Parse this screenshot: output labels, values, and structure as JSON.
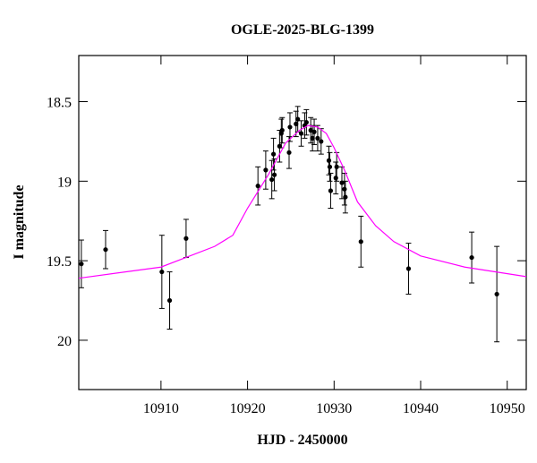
{
  "chart_data": {
    "type": "scatter",
    "title": "OGLE-2025-BLG-1399",
    "x_label": "HJD - 2450000",
    "y_label": "I magnitude",
    "xlim": [
      10900.5,
      10952.2
    ],
    "ylim": [
      18.21,
      20.31
    ],
    "y_inverted": true,
    "xticks": [
      10910,
      10920,
      10930,
      10940,
      10950
    ],
    "yticks": [
      18.5,
      19,
      19.5,
      20
    ],
    "series": [
      {
        "style": "points",
        "color": "#000000",
        "x": [
          10900.8,
          10903.6,
          10910.1,
          10911.0,
          10912.9,
          10921.2,
          10922.1,
          10922.8,
          10923.0,
          10923.1,
          10923.7,
          10923.9,
          10924.0,
          10924.8,
          10924.9,
          10925.6,
          10925.8,
          10926.2,
          10926.6,
          10926.8,
          10927.3,
          10927.5,
          10927.7,
          10928.1,
          10928.5,
          10929.4,
          10929.5,
          10929.6,
          10930.2,
          10930.3,
          10930.9,
          10931.2,
          10931.3,
          10933.1,
          10938.6,
          10945.9,
          10948.8
        ],
        "values": [
          19.52,
          19.43,
          19.57,
          19.75,
          19.36,
          19.03,
          18.93,
          18.99,
          18.83,
          18.96,
          18.78,
          18.7,
          18.68,
          18.82,
          18.66,
          18.64,
          18.61,
          18.7,
          18.65,
          18.63,
          18.68,
          18.73,
          18.69,
          18.73,
          18.75,
          18.87,
          18.91,
          19.06,
          18.98,
          18.91,
          19.01,
          19.05,
          19.1,
          19.38,
          19.55,
          19.48,
          19.71
        ],
        "errors": [
          0.15,
          0.12,
          0.23,
          0.18,
          0.12,
          0.12,
          0.12,
          0.12,
          0.1,
          0.1,
          0.1,
          0.09,
          0.08,
          0.1,
          0.09,
          0.08,
          0.08,
          0.08,
          0.08,
          0.08,
          0.08,
          0.08,
          0.08,
          0.08,
          0.08,
          0.09,
          0.09,
          0.11,
          0.1,
          0.09,
          0.1,
          0.1,
          0.1,
          0.16,
          0.16,
          0.16,
          0.3
        ]
      },
      {
        "style": "line",
        "color": "#ff00ff",
        "x": [
          10900.5,
          10910.0,
          10916.2,
          10918.3,
          10920.0,
          10922.4,
          10924.4,
          10926.0,
          10927.0,
          10928.1,
          10929.1,
          10930.0,
          10931.2,
          10932.7,
          10934.8,
          10936.9,
          10940.0,
          10945.1,
          10952.2
        ],
        "values": [
          19.61,
          19.54,
          19.41,
          19.34,
          19.17,
          18.96,
          18.76,
          18.68,
          18.65,
          18.66,
          18.7,
          18.79,
          18.93,
          19.13,
          19.28,
          19.38,
          19.47,
          19.54,
          19.6
        ]
      }
    ]
  }
}
